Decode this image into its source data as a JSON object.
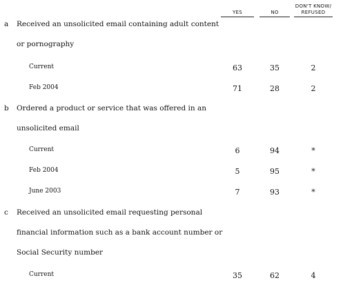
{
  "header": {
    "yes": "YES",
    "no": "NO",
    "dk_line1": "DON'T KNOW/",
    "dk_line2": "REFUSED"
  },
  "questions": [
    {
      "letter": "a",
      "lines": [
        "Received an unsolicited email containing adult content",
        "or pornography"
      ],
      "rows": [
        {
          "label": "Current",
          "yes": "63",
          "no": "35",
          "dk": "2"
        },
        {
          "label": "Feb 2004",
          "yes": "71",
          "no": "28",
          "dk": "2"
        }
      ]
    },
    {
      "letter": "b",
      "lines": [
        "Ordered a product or service that was offered in an",
        "unsolicited email"
      ],
      "rows": [
        {
          "label": "Current",
          "yes": "6",
          "no": "94",
          "dk": "*"
        },
        {
          "label": "Feb 2004",
          "yes": "5",
          "no": "95",
          "dk": "*"
        },
        {
          "label": "June 2003",
          "yes": "7",
          "no": "93",
          "dk": "*"
        }
      ]
    },
    {
      "letter": "c",
      "lines": [
        "Received an unsolicited email requesting personal",
        "financial information such as a bank account number or",
        "Social Security number"
      ],
      "rows": [
        {
          "label": "Current",
          "yes": "35",
          "no": "62",
          "dk": "4"
        }
      ]
    }
  ]
}
